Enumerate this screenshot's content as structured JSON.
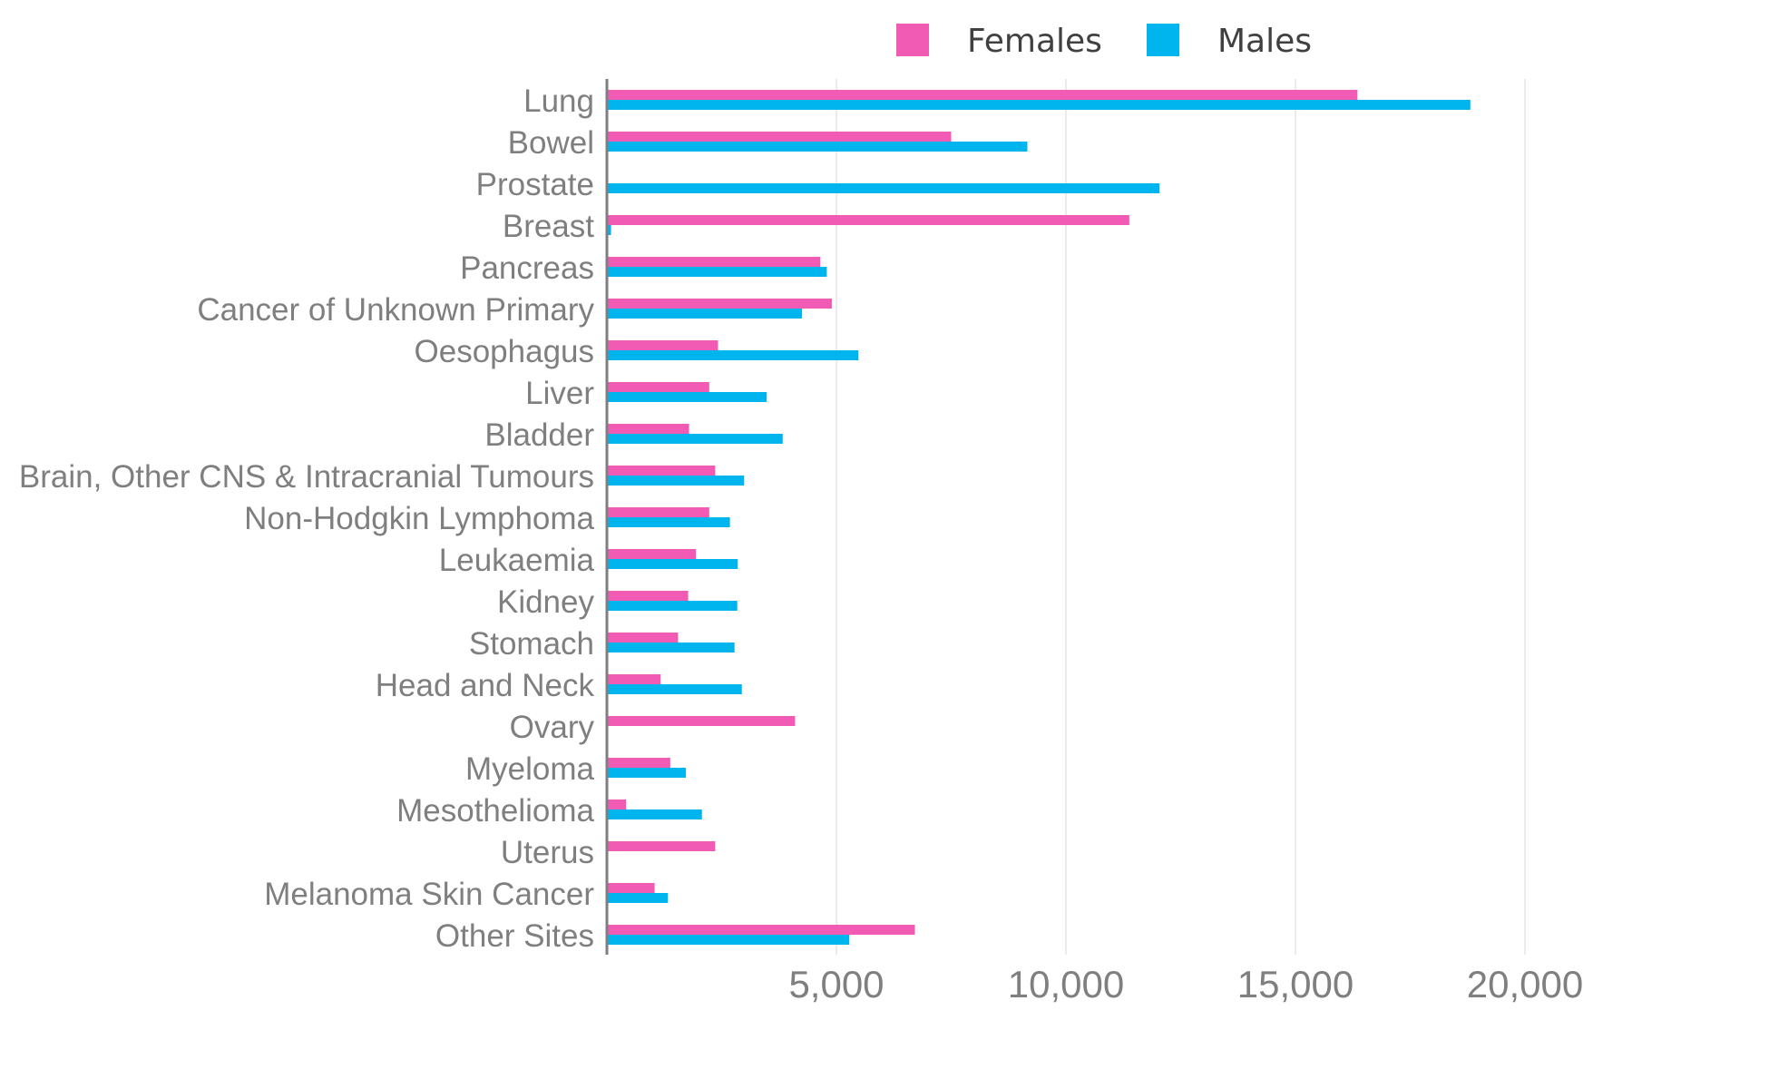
{
  "chart_data": {
    "type": "bar",
    "orientation": "horizontal",
    "title": "",
    "xlabel": "",
    "ylabel": "",
    "xlim": [
      0,
      23000
    ],
    "xticks": [
      5000,
      10000,
      15000,
      20000
    ],
    "xtick_labels": [
      "5,000",
      "10,000",
      "15,000",
      "20,000"
    ],
    "grid": "vertical",
    "legend": "top",
    "categories": [
      "Lung",
      "Bowel",
      "Prostate",
      "Breast",
      "Pancreas",
      "Cancer of Unknown Primary",
      "Oesophagus",
      "Liver",
      "Bladder",
      "Brain, Other CNS & Intracranial Tumours",
      "Non-Hodgkin Lymphoma",
      "Leukaemia",
      "Kidney",
      "Stomach",
      "Head and Neck",
      "Ovary",
      "Myeloma",
      "Mesothelioma",
      "Uterus",
      "Melanoma Skin Cancer",
      "Other Sites"
    ],
    "series": [
      {
        "name": "Females",
        "color": "#f25bb4",
        "values": [
          16350,
          7500,
          0,
          11380,
          4650,
          4900,
          2420,
          2230,
          1790,
          2360,
          2230,
          1940,
          1770,
          1550,
          1170,
          4100,
          1380,
          420,
          2360,
          1040,
          6710
        ]
      },
      {
        "name": "Males",
        "color": "#00b4ee",
        "values": [
          18810,
          9160,
          12040,
          90,
          4790,
          4250,
          5480,
          3480,
          3830,
          2990,
          2680,
          2850,
          2840,
          2780,
          2940,
          0,
          1720,
          2070,
          0,
          1330,
          5280
        ]
      }
    ]
  }
}
